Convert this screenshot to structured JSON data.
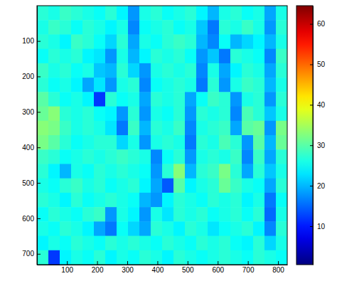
{
  "chart_data": {
    "type": "heatmap",
    "xlim": [
      0.5,
      830.5
    ],
    "xticks": [
      100,
      200,
      300,
      400,
      500,
      600,
      700,
      800
    ],
    "ylim": [
      0.5,
      730.5
    ],
    "yticks": [
      100,
      200,
      300,
      400,
      500,
      600,
      700
    ],
    "colorbar": {
      "lim": [
        0.5,
        64.5
      ],
      "ticks": [
        10,
        20,
        30,
        40,
        50,
        60
      ]
    },
    "cells": [
      [
        27,
        26,
        28,
        27,
        26,
        25,
        27,
        24,
        18,
        26,
        27,
        25,
        26,
        27,
        24,
        20,
        26,
        27,
        25,
        26,
        19,
        26
      ],
      [
        26,
        28,
        27,
        25,
        27,
        26,
        24,
        26,
        17,
        25,
        26,
        27,
        25,
        26,
        21,
        16,
        27,
        26,
        28,
        26,
        18,
        27
      ],
      [
        27,
        26,
        24,
        28,
        27,
        25,
        22,
        27,
        19,
        26,
        25,
        27,
        28,
        27,
        20,
        17,
        25,
        20,
        22,
        24,
        20,
        26
      ],
      [
        25,
        27,
        26,
        27,
        24,
        23,
        18,
        26,
        20,
        24,
        27,
        26,
        27,
        25,
        18,
        21,
        16,
        27,
        26,
        25,
        17,
        28
      ],
      [
        28,
        26,
        27,
        25,
        26,
        21,
        20,
        27,
        22,
        18,
        26,
        27,
        26,
        27,
        17,
        26,
        19,
        24,
        27,
        26,
        19,
        27
      ],
      [
        27,
        25,
        26,
        24,
        19,
        23,
        18,
        26,
        27,
        17,
        25,
        26,
        27,
        26,
        16,
        27,
        18,
        26,
        28,
        27,
        20,
        26
      ],
      [
        30,
        27,
        25,
        26,
        24,
        12,
        27,
        25,
        26,
        19,
        27,
        26,
        27,
        19,
        25,
        28,
        27,
        18,
        26,
        27,
        18,
        27
      ],
      [
        31,
        33,
        27,
        26,
        27,
        25,
        24,
        18,
        27,
        18,
        26,
        25,
        27,
        18,
        27,
        26,
        27,
        17,
        29,
        27,
        21,
        26
      ],
      [
        33,
        32,
        28,
        26,
        27,
        26,
        23,
        16,
        28,
        20,
        27,
        26,
        28,
        17,
        26,
        27,
        28,
        19,
        30,
        31,
        18,
        32
      ],
      [
        32,
        30,
        27,
        25,
        26,
        27,
        27,
        22,
        26,
        18,
        26,
        27,
        26,
        16,
        27,
        26,
        29,
        27,
        18,
        30,
        20,
        31
      ],
      [
        28,
        27,
        25,
        26,
        27,
        26,
        27,
        28,
        27,
        26,
        17,
        25,
        27,
        18,
        26,
        27,
        26,
        28,
        17,
        28,
        19,
        27
      ],
      [
        27,
        24,
        20,
        26,
        25,
        27,
        26,
        27,
        26,
        25,
        18,
        27,
        33,
        20,
        27,
        28,
        32,
        27,
        19,
        27,
        21,
        26
      ],
      [
        26,
        25,
        27,
        28,
        26,
        27,
        25,
        26,
        27,
        24,
        19,
        14,
        30,
        24,
        26,
        27,
        31,
        28,
        26,
        25,
        19,
        27
      ],
      [
        27,
        26,
        24,
        27,
        25,
        26,
        27,
        26,
        25,
        20,
        18,
        24,
        27,
        26,
        25,
        27,
        26,
        27,
        24,
        26,
        16,
        25
      ],
      [
        25,
        27,
        26,
        25,
        27,
        28,
        18,
        26,
        24,
        18,
        26,
        23,
        27,
        26,
        27,
        25,
        26,
        27,
        25,
        27,
        15,
        26
      ],
      [
        26,
        25,
        27,
        26,
        24,
        19,
        16,
        25,
        22,
        19,
        27,
        26,
        24,
        27,
        26,
        23,
        25,
        26,
        27,
        24,
        17,
        27
      ],
      [
        24,
        26,
        25,
        27,
        26,
        25,
        27,
        26,
        27,
        26,
        25,
        27,
        26,
        25,
        27,
        26,
        27,
        25,
        24,
        27,
        22,
        26
      ],
      [
        27,
        12,
        24,
        26,
        25,
        27,
        24,
        26,
        25,
        27,
        26,
        24,
        27,
        26,
        25,
        26,
        27,
        26,
        25,
        27,
        26,
        25
      ]
    ]
  }
}
